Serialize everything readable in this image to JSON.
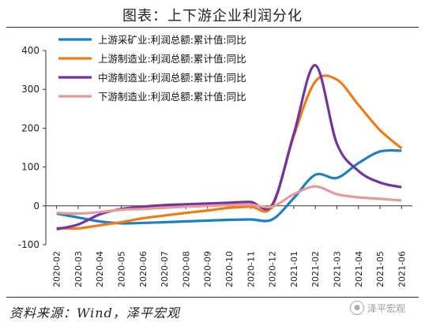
{
  "title": "图表：上下游企业利润分化",
  "source": "资料来源：Wind，泽平宏观",
  "watermark": {
    "label": "泽平宏观",
    "icon": "wechat-icon"
  },
  "chart_data": {
    "type": "line",
    "title": "图表：上下游企业利润分化",
    "xlabel": "",
    "ylabel": "",
    "ylim": [
      -100,
      400
    ],
    "yticks": [
      -100,
      0,
      100,
      200,
      300,
      400
    ],
    "grid": false,
    "legend_position": "top-left",
    "categories": [
      "2020-02",
      "2020-03",
      "2020-04",
      "2020-05",
      "2020-06",
      "2020-07",
      "2020-08",
      "2020-09",
      "2020-10",
      "2020-11",
      "2020-12",
      "2021-01",
      "2021-02",
      "2021-03",
      "2021-04",
      "2021-05",
      "2021-06"
    ],
    "series": [
      {
        "name": "上游采矿业:利润总额:累计值:同比",
        "color": "#1f7fc4",
        "values": [
          -20,
          -30,
          -40,
          -45,
          -44,
          -42,
          -40,
          -38,
          -36,
          -35,
          -35,
          20,
          80,
          72,
          110,
          140,
          142
        ]
      },
      {
        "name": "上游制造业:利润总额:累计值:同比",
        "color": "#f07c17",
        "values": [
          -57,
          -58,
          -50,
          -42,
          -32,
          -25,
          -18,
          -12,
          -5,
          -2,
          -1,
          180,
          320,
          325,
          260,
          195,
          148
        ]
      },
      {
        "name": "中游制造业:利润总额:累计值:同比",
        "color": "#7434a0",
        "values": [
          -60,
          -48,
          -22,
          -8,
          -2,
          2,
          4,
          6,
          8,
          10,
          3,
          185,
          362,
          160,
          90,
          60,
          48
        ]
      },
      {
        "name": "下游制造业:利润总额:累计值:同比",
        "color": "#e89a9a",
        "values": [
          -18,
          -20,
          -16,
          -10,
          -8,
          -5,
          -2,
          0,
          2,
          3,
          -2,
          30,
          50,
          30,
          22,
          18,
          14
        ]
      }
    ]
  }
}
